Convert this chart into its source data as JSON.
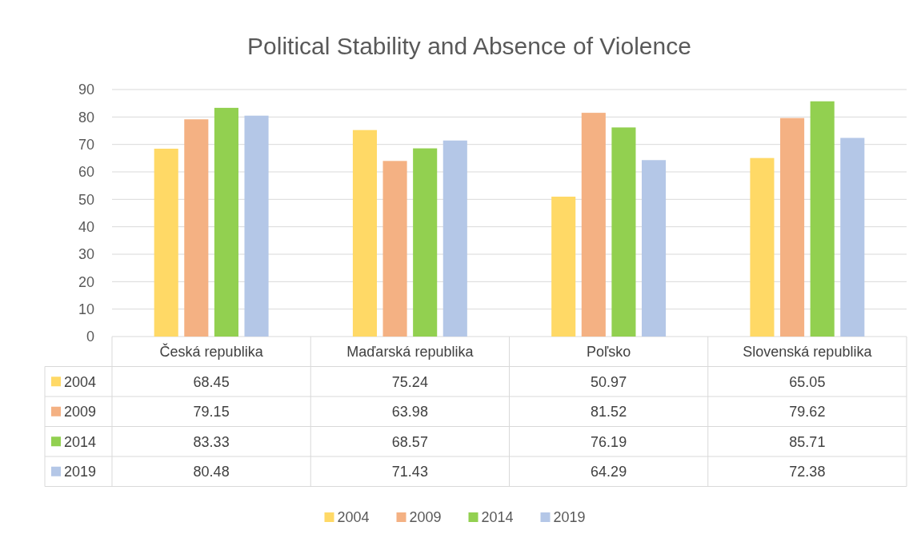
{
  "chart_data": {
    "type": "bar",
    "title": "Political Stability and Absence of Violence",
    "categories": [
      "Česká republika",
      "Maďarská republika",
      "Poľsko",
      "Slovenská republika"
    ],
    "series": [
      {
        "name": "2004",
        "color": "#ffd966",
        "values": [
          68.45,
          75.24,
          50.97,
          65.05
        ]
      },
      {
        "name": "2009",
        "color": "#f4b183",
        "values": [
          79.15,
          63.98,
          81.52,
          79.62
        ]
      },
      {
        "name": "2014",
        "color": "#92d050",
        "values": [
          83.33,
          68.57,
          76.19,
          85.71
        ]
      },
      {
        "name": "2019",
        "color": "#b4c7e7",
        "values": [
          80.48,
          71.43,
          64.29,
          72.38
        ]
      }
    ],
    "ylim": [
      0,
      90
    ],
    "yticks": [
      0,
      10,
      20,
      30,
      40,
      50,
      60,
      70,
      80,
      90
    ],
    "grid": "y",
    "legend": "bottom",
    "data_labels": true
  }
}
